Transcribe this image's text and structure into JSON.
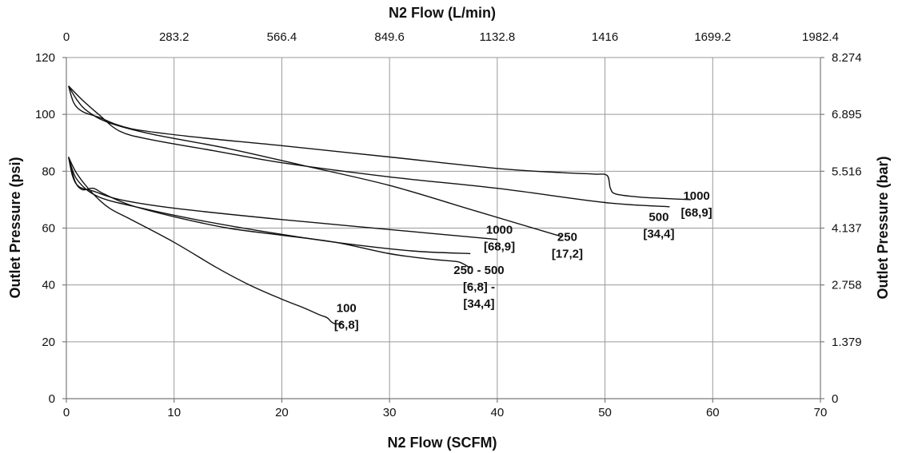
{
  "chart_data": {
    "type": "line",
    "title": "",
    "xlabel_bottom": "N2 Flow (SCFM)",
    "xlabel_top": "N2 Flow (L/min)",
    "ylabel_left": "Outlet Pressure (psi)",
    "ylabel_right": "Outlet Pressure (bar)",
    "xlim": [
      0,
      70
    ],
    "ylim": [
      0,
      120
    ],
    "grid": true,
    "x_ticks_bottom": [
      "0",
      "10",
      "20",
      "30",
      "40",
      "50",
      "60",
      "70"
    ],
    "x_ticks_top": [
      "0",
      "283.2",
      "566.4",
      "849.6",
      "1132.8",
      "1416",
      "1699.2",
      "1982.4"
    ],
    "y_ticks_left": [
      "0",
      "20",
      "40",
      "60",
      "80",
      "100",
      "120"
    ],
    "y_ticks_right": [
      "0",
      "1.379",
      "2.758",
      "4.137",
      "5.516",
      "6.895",
      "8.274"
    ],
    "series": [
      {
        "label_lines": [
          "1000",
          "[68,9]"
        ],
        "label_at": [
          58.5,
          70
        ],
        "points": [
          [
            0.2,
            110
          ],
          [
            0.7,
            104
          ],
          [
            1.5,
            101
          ],
          [
            3,
            99
          ],
          [
            6,
            95
          ],
          [
            12,
            92
          ],
          [
            20,
            89
          ],
          [
            30,
            85
          ],
          [
            40,
            81
          ],
          [
            46,
            79.5
          ],
          [
            49,
            79
          ],
          [
            50.2,
            78.5
          ],
          [
            50.5,
            74
          ],
          [
            51,
            72
          ],
          [
            53,
            71
          ],
          [
            55,
            70.5
          ],
          [
            58,
            70
          ]
        ]
      },
      {
        "label_lines": [
          "500",
          "[34,4]"
        ],
        "label_at": [
          55,
          62.5
        ],
        "points": [
          [
            0.2,
            110
          ],
          [
            1.5,
            105
          ],
          [
            3,
            100
          ],
          [
            5,
            94
          ],
          [
            8,
            91
          ],
          [
            14,
            87
          ],
          [
            20,
            83
          ],
          [
            30,
            78
          ],
          [
            40,
            74
          ],
          [
            50,
            69
          ],
          [
            56,
            67.5
          ]
        ]
      },
      {
        "label_lines": [
          "250",
          "[17,2]"
        ],
        "label_at": [
          46.5,
          55.5
        ],
        "points": [
          [
            0.2,
            110
          ],
          [
            1,
            105
          ],
          [
            2,
            101
          ],
          [
            4,
            97
          ],
          [
            8,
            93
          ],
          [
            15,
            88
          ],
          [
            22,
            82
          ],
          [
            30,
            75
          ],
          [
            38,
            66
          ],
          [
            46,
            57
          ]
        ]
      },
      {
        "label_lines": [
          "1000",
          "[68,9]"
        ],
        "label_at": [
          40.2,
          58
        ],
        "points": [
          [
            0.2,
            85
          ],
          [
            0.6,
            78
          ],
          [
            1.2,
            74.5
          ],
          [
            2.5,
            73
          ],
          [
            5,
            70
          ],
          [
            10,
            67
          ],
          [
            20,
            63
          ],
          [
            30,
            59.5
          ],
          [
            40,
            56
          ]
        ]
      },
      {
        "label_lines": [
          "250 - 500",
          "[6,8] -",
          "[34,4]"
        ],
        "label_at": [
          38.3,
          43.8
        ],
        "points": [
          [
            0.2,
            85
          ],
          [
            0.8,
            76.5
          ],
          [
            1.5,
            73.5
          ],
          [
            2.5,
            74
          ],
          [
            3.5,
            72
          ],
          [
            6,
            68
          ],
          [
            10,
            64
          ],
          [
            15,
            60
          ],
          [
            20,
            57.5
          ],
          [
            25,
            55
          ],
          [
            30,
            51
          ],
          [
            34,
            49
          ],
          [
            35.5,
            48.5
          ],
          [
            36.5,
            48
          ],
          [
            37.5,
            46
          ]
        ]
      },
      {
        "label_lines": [
          "",
          ""
        ],
        "label_at": [
          0,
          0
        ],
        "points": [
          [
            0.2,
            85
          ],
          [
            1,
            77
          ],
          [
            3,
            71
          ],
          [
            7,
            67
          ],
          [
            12,
            63
          ],
          [
            18,
            59
          ],
          [
            25,
            55
          ],
          [
            32,
            52
          ],
          [
            37.5,
            51
          ]
        ]
      },
      {
        "label_lines": [
          "100",
          "[6,8]"
        ],
        "label_at": [
          26,
          30.5
        ],
        "points": [
          [
            0.2,
            85
          ],
          [
            1,
            79
          ],
          [
            2.5,
            72
          ],
          [
            4,
            67
          ],
          [
            6,
            63
          ],
          [
            10,
            55
          ],
          [
            14,
            46
          ],
          [
            17,
            40
          ],
          [
            20,
            35
          ],
          [
            22,
            32
          ],
          [
            23.5,
            29.5
          ],
          [
            24.2,
            28.5
          ],
          [
            24.6,
            27
          ],
          [
            25,
            26.3
          ],
          [
            25.6,
            26.5
          ]
        ]
      }
    ]
  }
}
